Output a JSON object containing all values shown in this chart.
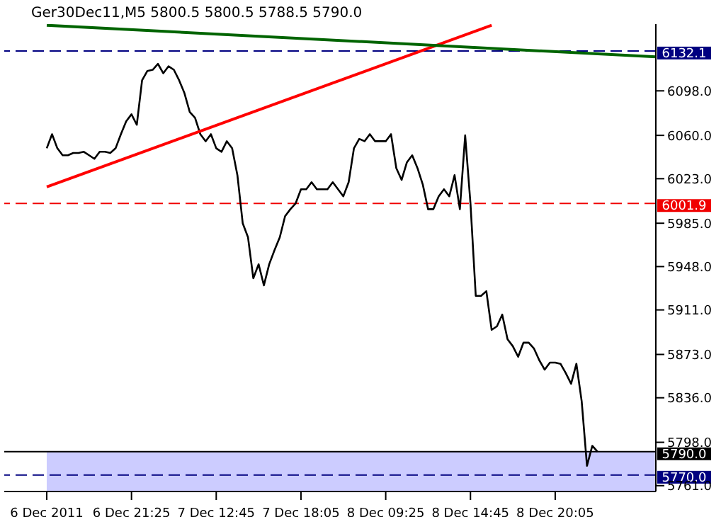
{
  "chart_data": {
    "type": "line",
    "title": "Ger30Dec11,M5  5800.5 5800.5 5788.5 5790.0",
    "categories": [
      "6 Dec 2011",
      null,
      null,
      null,
      null,
      null,
      null,
      null,
      null,
      null,
      null,
      null,
      null,
      null,
      null,
      null,
      "6 Dec 21:25",
      null,
      null,
      null,
      null,
      null,
      null,
      null,
      null,
      null,
      null,
      null,
      null,
      null,
      null,
      null,
      "7 Dec 12:45",
      null,
      null,
      null,
      null,
      null,
      null,
      null,
      null,
      null,
      null,
      null,
      null,
      null,
      null,
      null,
      "7 Dec 18:05",
      null,
      null,
      null,
      null,
      null,
      null,
      null,
      null,
      null,
      null,
      null,
      null,
      null,
      null,
      null,
      "8 Dec 09:25",
      null,
      null,
      null,
      null,
      null,
      null,
      null,
      null,
      null,
      null,
      null,
      null,
      null,
      null,
      null,
      "8 Dec 14:45",
      null,
      null,
      null,
      null,
      null,
      null,
      null,
      null,
      null,
      null,
      null,
      null,
      null,
      null,
      null,
      "8 Dec 20:05",
      null,
      null,
      null,
      null,
      null,
      null,
      null,
      null,
      null,
      null,
      null,
      null,
      null,
      null,
      null,
      null,
      null,
      null,
      null
    ],
    "series": [
      {
        "color": "#000000",
        "values": [
          6049,
          6061,
          6049,
          6043,
          6043,
          6045,
          6045,
          6046,
          6043,
          6040,
          6046,
          6046,
          6045,
          6049,
          6061,
          6072,
          6078,
          6069,
          6107,
          6115,
          6116,
          6121,
          6113,
          6119,
          6116,
          6107,
          6096,
          6080,
          6075,
          6061,
          6055,
          6061,
          6049,
          6046,
          6055,
          6049,
          6026,
          5985,
          5973,
          5938,
          5950,
          5932,
          5950,
          5962,
          5973,
          5991,
          5997,
          6002,
          6014,
          6014,
          6020,
          6014,
          6014,
          6014,
          6020,
          6014,
          6008,
          6020,
          6049,
          6057,
          6055,
          6061,
          6055,
          6055,
          6055,
          6061,
          6032,
          6022,
          6037,
          6043,
          6032,
          6018,
          5997,
          5997,
          6008,
          6014,
          6008,
          6026,
          5997,
          6060,
          6002,
          5923,
          5923,
          5927,
          5894,
          5897,
          5907,
          5886,
          5880,
          5871,
          5883,
          5883,
          5878,
          5868,
          5860,
          5866,
          5866,
          5865,
          5857,
          5848,
          5865,
          5833,
          5778,
          5795,
          5790,
          null,
          null,
          null,
          null,
          null,
          null,
          null,
          null,
          null,
          null,
          null
        ]
      },
      {
        "color": "#ff0000",
        "values": [
          6016,
          null,
          null,
          null,
          null,
          null,
          null,
          null,
          null,
          null,
          null,
          null,
          null,
          null,
          null,
          null,
          null,
          null,
          null,
          null,
          null,
          null,
          null,
          null,
          null,
          null,
          null,
          null,
          null,
          null,
          null,
          null,
          null,
          null,
          null,
          null,
          null,
          null,
          null,
          null,
          null,
          null,
          null,
          null,
          null,
          null,
          null,
          null,
          null,
          null,
          null,
          null,
          null,
          null,
          null,
          null,
          null,
          null,
          null,
          null,
          null,
          null,
          null,
          null,
          null,
          null,
          null,
          null,
          null,
          null,
          null,
          null,
          null,
          null,
          null,
          null,
          null,
          null,
          null,
          null,
          null,
          null,
          null,
          null,
          6154,
          null,
          null,
          null,
          null,
          null,
          null,
          null,
          null,
          null,
          null,
          null,
          null,
          null,
          null,
          null,
          null,
          null,
          null,
          null,
          null,
          null,
          null,
          null,
          null,
          null,
          null,
          null,
          null,
          null,
          null,
          null
        ]
      },
      {
        "color": "#006400",
        "values": [
          6154,
          null,
          null,
          null,
          null,
          null,
          null,
          null,
          null,
          null,
          null,
          null,
          null,
          null,
          null,
          null,
          null,
          null,
          null,
          null,
          null,
          null,
          null,
          null,
          null,
          null,
          null,
          null,
          null,
          null,
          null,
          null,
          null,
          null,
          null,
          null,
          null,
          null,
          null,
          null,
          null,
          null,
          null,
          null,
          null,
          null,
          null,
          null,
          null,
          null,
          null,
          null,
          null,
          null,
          null,
          null,
          null,
          null,
          null,
          null,
          null,
          null,
          null,
          null,
          null,
          null,
          null,
          null,
          null,
          null,
          null,
          null,
          null,
          null,
          null,
          null,
          null,
          null,
          null,
          null,
          null,
          null,
          null,
          null,
          null,
          null,
          null,
          null,
          null,
          null,
          null,
          null,
          null,
          null,
          null,
          null,
          null,
          null,
          null,
          null,
          null,
          null,
          null,
          null,
          null,
          null,
          null,
          null,
          null,
          null,
          null,
          null,
          null,
          null,
          null,
          6127
        ]
      }
    ],
    "ylim": [
      5756,
      6155
    ],
    "yticks": [
      {
        "value": 5761,
        "label": "5761.0"
      },
      {
        "value": 5798,
        "label": "5798.0"
      },
      {
        "value": 5836,
        "label": "5836.0"
      },
      {
        "value": 5873,
        "label": "5873.0"
      },
      {
        "value": 5911,
        "label": "5911.0"
      },
      {
        "value": 5948,
        "label": "5948.0"
      },
      {
        "value": 5985,
        "label": "5985.0"
      },
      {
        "value": 6023,
        "label": "6023.0"
      },
      {
        "value": 6060,
        "label": "6060.0"
      },
      {
        "value": 6098,
        "label": "6098.0"
      }
    ],
    "ref_lines": [
      {
        "axis": "y",
        "value": 6132.1,
        "label": "6132.1",
        "color": "#000080",
        "line_style": "dashed"
      },
      {
        "axis": "y",
        "value": 6001.9,
        "label": "6001.9",
        "color": "#f00000",
        "line_style": "dashed"
      },
      {
        "axis": "y",
        "value": 5790.0,
        "label": "5790.0",
        "color": "#000000",
        "line_style": "solid"
      },
      {
        "axis": "y",
        "value": 5770.0,
        "label": "5770.0",
        "color": "#000080",
        "line_style": "dashed"
      }
    ],
    "bands": [
      {
        "axis": "y",
        "from": 5756,
        "to": 5790,
        "color": "#ccccff"
      }
    ],
    "grid": false,
    "legend": false
  }
}
